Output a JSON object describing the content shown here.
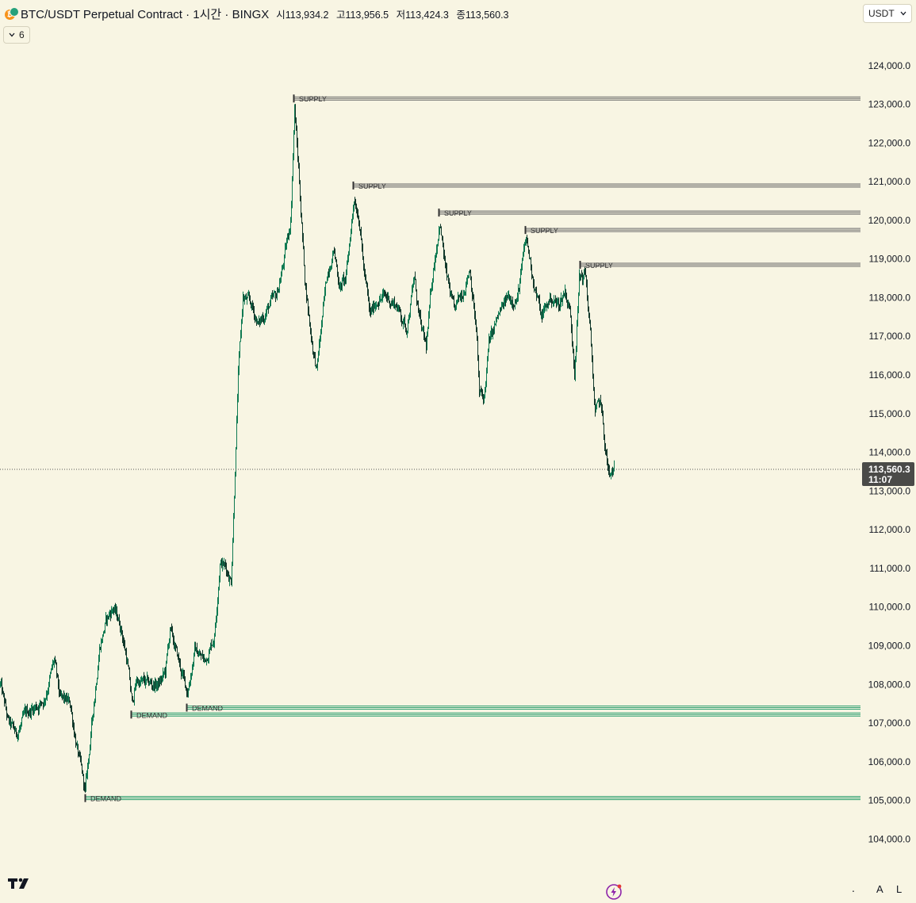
{
  "header": {
    "title": "BTC/USDT Perpetual Contract · 1시간 · BINGX",
    "open_label": "시",
    "open": "113,934.2",
    "high_label": "고",
    "high": "113,956.5",
    "low_label": "저",
    "low": "113,424.3",
    "close_label": "종",
    "close": "113,560.3"
  },
  "indicator_toggle": {
    "count": "6"
  },
  "currency_select": {
    "value": "USDT"
  },
  "price_tag": {
    "price": "113,560.3",
    "countdown": "11:07"
  },
  "bottom_bar": {
    "dot": ".",
    "auto_label": "A",
    "log_label": "L"
  },
  "colors": {
    "background": "#f8f5e3",
    "candle_up": "#0f7a52",
    "candle_down": "#12382b",
    "supply_zone": "#6b6b6b",
    "demand_zone": "#2b9e6e",
    "price_tag_bg": "#4a4a48"
  },
  "icons": [
    "bitcoin-icon",
    "tether-icon",
    "chevron-down-icon",
    "tradingview-logo-icon",
    "lightning-bolt-icon"
  ],
  "chart_data": {
    "type": "candlestick",
    "title": "BTC/USDT Perpetual Contract",
    "timeframe": "1h",
    "ylim": [
      103000,
      125000
    ],
    "ytick_labels": [
      "104,000.0",
      "105,000.0",
      "106,000.0",
      "107,000.0",
      "108,000.0",
      "109,000.0",
      "110,000.0",
      "111,000.0",
      "112,000.0",
      "113,000.0",
      "114,000.0",
      "115,000.0",
      "116,000.0",
      "117,000.0",
      "118,000.0",
      "119,000.0",
      "120,000.0",
      "121,000.0",
      "122,000.0",
      "123,000.0",
      "124,000.0"
    ],
    "ytick_values": [
      104000,
      105000,
      106000,
      107000,
      108000,
      109000,
      110000,
      111000,
      112000,
      113000,
      114000,
      115000,
      116000,
      117000,
      118000,
      119000,
      120000,
      121000,
      122000,
      123000,
      124000
    ],
    "current_price": 113560.3,
    "bar_count": 770,
    "key_points": [
      {
        "bar": 0,
        "price": 108000
      },
      {
        "bar": 10,
        "price": 107000
      },
      {
        "bar": 20,
        "price": 106700
      },
      {
        "bar": 35,
        "price": 107300
      },
      {
        "bar": 55,
        "price": 107600
      },
      {
        "bar": 68,
        "price": 108600
      },
      {
        "bar": 75,
        "price": 107600
      },
      {
        "bar": 88,
        "price": 107500
      },
      {
        "bar": 98,
        "price": 106200
      },
      {
        "bar": 107,
        "price": 105200
      },
      {
        "bar": 118,
        "price": 107500
      },
      {
        "bar": 125,
        "price": 109000
      },
      {
        "bar": 133,
        "price": 109600
      },
      {
        "bar": 142,
        "price": 110000
      },
      {
        "bar": 152,
        "price": 109500
      },
      {
        "bar": 160,
        "price": 108600
      },
      {
        "bar": 166,
        "price": 107500
      },
      {
        "bar": 172,
        "price": 108100
      },
      {
        "bar": 185,
        "price": 108000
      },
      {
        "bar": 200,
        "price": 108000
      },
      {
        "bar": 208,
        "price": 108300
      },
      {
        "bar": 214,
        "price": 109400
      },
      {
        "bar": 222,
        "price": 108800
      },
      {
        "bar": 230,
        "price": 108200
      },
      {
        "bar": 236,
        "price": 107800
      },
      {
        "bar": 245,
        "price": 108900
      },
      {
        "bar": 258,
        "price": 108600
      },
      {
        "bar": 270,
        "price": 109300
      },
      {
        "bar": 277,
        "price": 111200
      },
      {
        "bar": 285,
        "price": 111000
      },
      {
        "bar": 291,
        "price": 110700
      },
      {
        "bar": 295,
        "price": 113000
      },
      {
        "bar": 300,
        "price": 116000
      },
      {
        "bar": 306,
        "price": 118000
      },
      {
        "bar": 316,
        "price": 117800
      },
      {
        "bar": 326,
        "price": 117300
      },
      {
        "bar": 336,
        "price": 117700
      },
      {
        "bar": 348,
        "price": 118000
      },
      {
        "bar": 358,
        "price": 119000
      },
      {
        "bar": 366,
        "price": 120000
      },
      {
        "bar": 371,
        "price": 122900
      },
      {
        "bar": 377,
        "price": 121000
      },
      {
        "bar": 384,
        "price": 118500
      },
      {
        "bar": 392,
        "price": 117000
      },
      {
        "bar": 399,
        "price": 116100
      },
      {
        "bar": 406,
        "price": 117500
      },
      {
        "bar": 413,
        "price": 118700
      },
      {
        "bar": 420,
        "price": 119300
      },
      {
        "bar": 428,
        "price": 118300
      },
      {
        "bar": 436,
        "price": 118500
      },
      {
        "bar": 446,
        "price": 120600
      },
      {
        "bar": 452,
        "price": 120200
      },
      {
        "bar": 458,
        "price": 118800
      },
      {
        "bar": 466,
        "price": 117500
      },
      {
        "bar": 476,
        "price": 118000
      },
      {
        "bar": 488,
        "price": 118000
      },
      {
        "bar": 500,
        "price": 117800
      },
      {
        "bar": 512,
        "price": 117200
      },
      {
        "bar": 522,
        "price": 118500
      },
      {
        "bar": 530,
        "price": 117200
      },
      {
        "bar": 537,
        "price": 116700
      },
      {
        "bar": 545,
        "price": 118600
      },
      {
        "bar": 554,
        "price": 120000
      },
      {
        "bar": 562,
        "price": 118600
      },
      {
        "bar": 572,
        "price": 117600
      },
      {
        "bar": 582,
        "price": 118100
      },
      {
        "bar": 592,
        "price": 118800
      },
      {
        "bar": 600,
        "price": 117200
      },
      {
        "bar": 604,
        "price": 115500
      },
      {
        "bar": 610,
        "price": 115400
      },
      {
        "bar": 616,
        "price": 116800
      },
      {
        "bar": 628,
        "price": 117500
      },
      {
        "bar": 640,
        "price": 118000
      },
      {
        "bar": 652,
        "price": 118000
      },
      {
        "bar": 663,
        "price": 119500
      },
      {
        "bar": 672,
        "price": 118500
      },
      {
        "bar": 682,
        "price": 117500
      },
      {
        "bar": 694,
        "price": 118000
      },
      {
        "bar": 704,
        "price": 117800
      },
      {
        "bar": 712,
        "price": 118200
      },
      {
        "bar": 718,
        "price": 117700
      },
      {
        "bar": 724,
        "price": 116200
      },
      {
        "bar": 730,
        "price": 118500
      },
      {
        "bar": 738,
        "price": 118600
      },
      {
        "bar": 744,
        "price": 117000
      },
      {
        "bar": 750,
        "price": 115000
      },
      {
        "bar": 757,
        "price": 115300
      },
      {
        "bar": 762,
        "price": 114200
      },
      {
        "bar": 768,
        "price": 113300
      },
      {
        "bar": 774,
        "price": 113560
      }
    ],
    "zones": [
      {
        "type": "supply",
        "label": "SUPPLY",
        "start_bar": 370,
        "price": 123150
      },
      {
        "type": "supply",
        "label": "SUPPLY",
        "start_bar": 445,
        "price": 120900
      },
      {
        "type": "supply",
        "label": "SUPPLY",
        "start_bar": 553,
        "price": 120200
      },
      {
        "type": "supply",
        "label": "SUPPLY",
        "start_bar": 662,
        "price": 119750
      },
      {
        "type": "supply",
        "label": "SUPPLY",
        "start_bar": 731,
        "price": 118850
      },
      {
        "type": "demand",
        "label": "DEMAND",
        "start_bar": 235,
        "price": 107400
      },
      {
        "type": "demand",
        "label": "DEMAND",
        "start_bar": 165,
        "price": 107220
      },
      {
        "type": "demand",
        "label": "DEMAND",
        "start_bar": 107,
        "price": 105060
      }
    ]
  }
}
